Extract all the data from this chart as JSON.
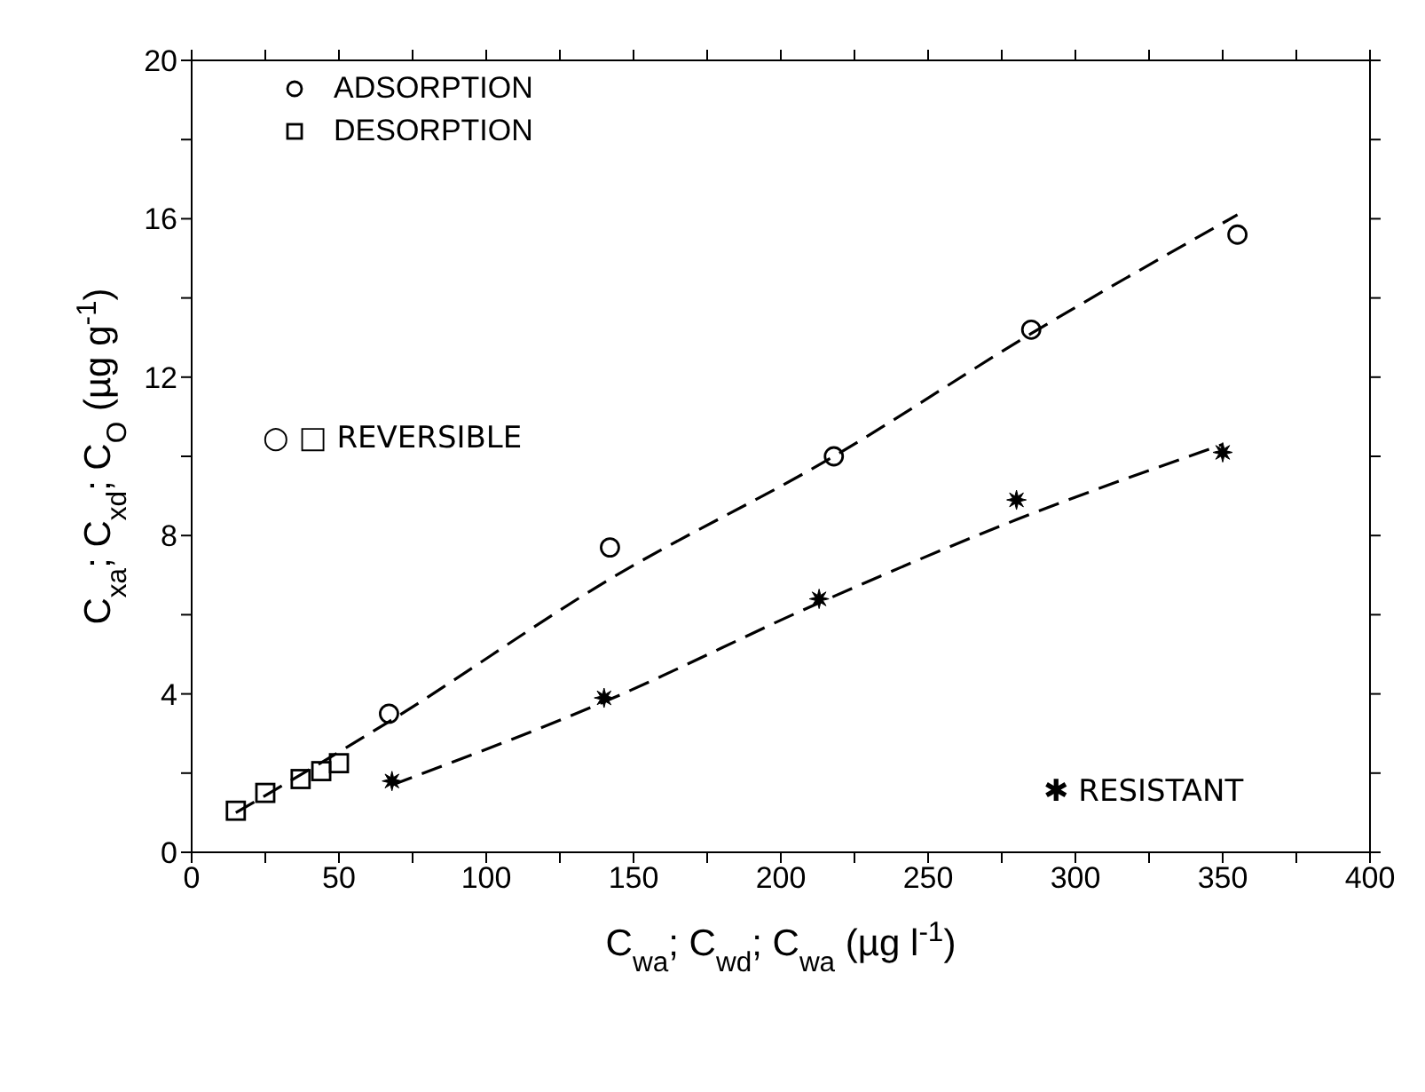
{
  "chart_data": {
    "type": "scatter",
    "xlabel": "C$_{wa}$; C$_{wd}$; C$_{wa}$ (µg l$^{-1}$)",
    "ylabel": "C$_{xa}$; C$_{xd}$; C$_{O}$ (µg g$^{-1}$)",
    "xlim": [
      0,
      400
    ],
    "ylim": [
      0,
      20
    ],
    "xticks": [
      0,
      {
        "value": 25,
        "label": null
      },
      50,
      {
        "value": 75,
        "label": null
      },
      100,
      {
        "value": 125,
        "label": null
      },
      150,
      {
        "value": 175,
        "label": null
      },
      200,
      {
        "value": 225,
        "label": null
      },
      250,
      {
        "value": 275,
        "label": null
      },
      300,
      {
        "value": 325,
        "label": null
      },
      350,
      {
        "value": 375,
        "label": null
      },
      400
    ],
    "yticks": [
      0,
      {
        "value": 2,
        "label": null
      },
      4,
      {
        "value": 6,
        "label": null
      },
      8,
      {
        "value": 10,
        "label": null
      },
      12,
      {
        "value": 14,
        "label": null
      },
      16,
      {
        "value": 18,
        "label": null
      },
      20
    ],
    "grid": false,
    "legend": "top left",
    "line_style": "dashed",
    "series": [
      {
        "name": "ADSORPTION",
        "marker": "circle",
        "color": "#000000",
        "x": [
          67,
          142,
          218,
          285,
          355
        ],
        "values": [
          3.5,
          7.7,
          10.0,
          13.2,
          15.6
        ]
      },
      {
        "name": "DESORPTION",
        "marker": "square",
        "color": "#000000",
        "x": [
          15,
          25,
          37,
          44,
          50
        ],
        "values": [
          1.05,
          1.5,
          1.85,
          2.05,
          2.25
        ]
      },
      {
        "marker": "star",
        "color": "#000000",
        "x": [
          68,
          140,
          213,
          280,
          350
        ],
        "values": [
          1.8,
          3.9,
          6.4,
          8.9,
          10.1
        ]
      },
      {
        "type": "line",
        "marker": "none",
        "color": "#000000",
        "x": [
          15,
          67,
          142,
          218,
          285,
          355
        ],
        "values": [
          1.0,
          3.3,
          6.9,
          10.0,
          13.1,
          16.1
        ]
      },
      {
        "type": "line",
        "marker": "none",
        "color": "#000000",
        "x": [
          68,
          140,
          213,
          280,
          350
        ],
        "values": [
          1.7,
          3.8,
          6.3,
          8.4,
          10.3
        ]
      }
    ],
    "annotations": [
      "○ □ REVERSIBLE",
      "✱ RESISTANT"
    ]
  }
}
